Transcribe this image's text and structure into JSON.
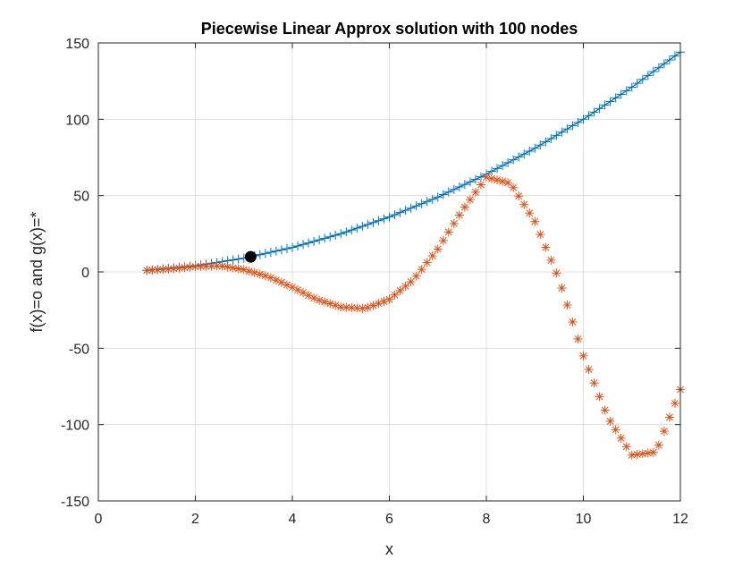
{
  "chart_data": {
    "type": "scatter",
    "title": "Piecewise Linear Approx solution with 100 nodes",
    "xlabel": "x",
    "ylabel": "f(x)=o and g(x)=*",
    "xlim": [
      0,
      12
    ],
    "ylim": [
      -150,
      150
    ],
    "xticks": [
      0,
      2,
      4,
      6,
      8,
      10,
      12
    ],
    "yticks": [
      -150,
      -100,
      -50,
      0,
      50,
      100,
      150
    ],
    "grid": true,
    "series": [
      {
        "marker": "+",
        "line": true,
        "color": "#0072BD",
        "x_range": [
          1,
          12
        ],
        "count": 100,
        "points": [
          [
            1,
            1
          ],
          [
            2,
            4
          ],
          [
            3,
            9
          ],
          [
            4,
            16
          ],
          [
            5,
            25
          ],
          [
            6,
            36
          ],
          [
            7,
            49
          ],
          [
            8,
            64
          ],
          [
            9,
            81
          ],
          [
            10,
            100
          ],
          [
            11,
            121
          ],
          [
            12,
            144
          ]
        ]
      },
      {
        "marker": "*",
        "line": false,
        "color": "#D95319",
        "x_range": [
          1,
          12
        ],
        "count": 100,
        "points": [
          [
            1,
            1
          ],
          [
            1.5,
            2
          ],
          [
            2,
            3.5
          ],
          [
            2.5,
            4
          ],
          [
            3,
            1.5
          ],
          [
            3.5,
            -3
          ],
          [
            4,
            -10
          ],
          [
            4.5,
            -18
          ],
          [
            5,
            -23
          ],
          [
            5.5,
            -24
          ],
          [
            6,
            -18
          ],
          [
            6.5,
            -5
          ],
          [
            7,
            15
          ],
          [
            7.5,
            40
          ],
          [
            8,
            62
          ],
          [
            8.5,
            58
          ],
          [
            9,
            33
          ],
          [
            9.5,
            -5
          ],
          [
            10,
            -55
          ],
          [
            10.5,
            -95
          ],
          [
            11,
            -120
          ],
          [
            11.5,
            -118
          ],
          [
            12,
            -77
          ]
        ]
      }
    ],
    "highlight_point": {
      "x": 3.14,
      "y": 9.87,
      "color": "#000000"
    }
  }
}
